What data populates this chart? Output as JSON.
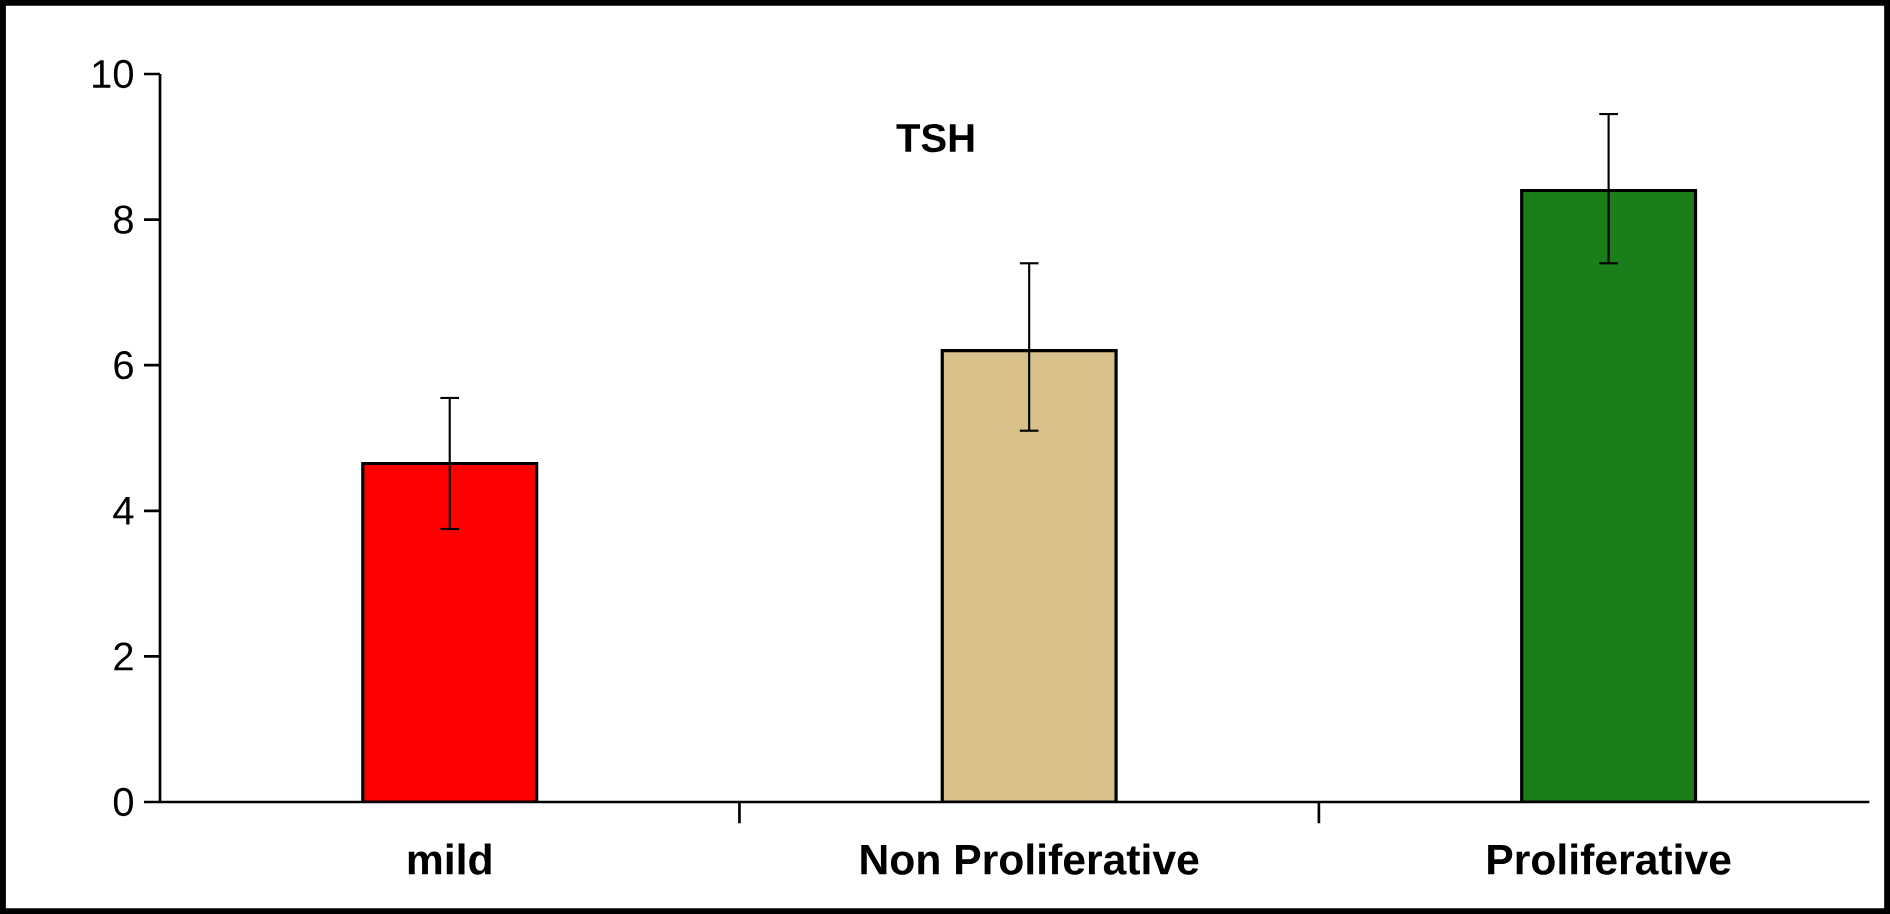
{
  "chart_data": {
    "type": "bar",
    "title": "TSH",
    "categories": [
      "mild",
      "Non Proliferative",
      "Proliferative"
    ],
    "values": [
      4.65,
      6.2,
      8.4
    ],
    "errors": [
      [
        3.75,
        5.55
      ],
      [
        5.1,
        7.4
      ],
      [
        7.4,
        9.45
      ]
    ],
    "colors": [
      "#ff0000",
      "#d8c08a",
      "#1a7f1a"
    ],
    "ylim": [
      0,
      10
    ],
    "yticks": [
      0,
      2,
      4,
      6,
      8,
      10
    ],
    "grid": false
  }
}
